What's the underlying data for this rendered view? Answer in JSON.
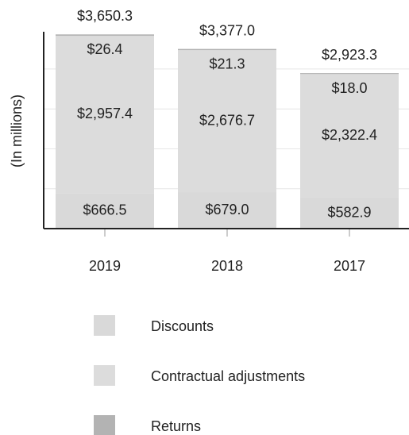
{
  "chart_data": {
    "type": "stacked_bar",
    "y_label": "(In millions)",
    "categories": [
      "2019",
      "2018",
      "2017"
    ],
    "series": [
      {
        "name": "Discounts",
        "color": "#d9d9d9",
        "values": [
          666.5,
          679.0,
          582.9
        ],
        "value_labels": [
          "$666.5",
          "$679.0",
          "$582.9"
        ]
      },
      {
        "name": "Contractual adjustments",
        "color": "#dcdcdc",
        "values": [
          2957.4,
          2676.7,
          2322.4
        ],
        "value_labels": [
          "$2,957.4",
          "$2,676.7",
          "$2,322.4"
        ]
      },
      {
        "name": "Returns",
        "color": "#b3b3b3",
        "values": [
          26.4,
          21.3,
          18.0
        ],
        "value_labels": [
          "$26.4",
          "$21.3",
          "$18.0"
        ]
      }
    ],
    "totals": [
      3650.3,
      3377.0,
      2923.3
    ],
    "total_labels": [
      "$3,650.3",
      "$3,377.0",
      "$2,923.3"
    ],
    "ylim": [
      0,
      3700
    ],
    "yticks": [
      0,
      750,
      1500,
      2250,
      3000
    ],
    "grid": true
  }
}
